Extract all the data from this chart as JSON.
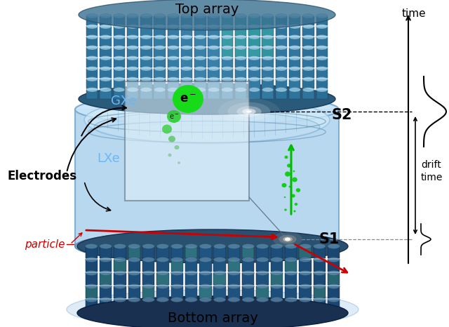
{
  "labels": {
    "top_array": "Top array",
    "bottom_array": "Bottom array",
    "GXe": "GXe",
    "LXe": "LXe",
    "Electrodes": "Electrodes",
    "S1": "S1",
    "S2": "S2",
    "particle": "particle",
    "time": "time",
    "drift_time": "drift\ntime",
    "electron": "e⁻"
  },
  "colors": {
    "background": "#ffffff",
    "body_fill": "#b8d8f0",
    "body_edge": "#7aaad0",
    "GXe_label": "#6ab8f8",
    "LXe_label": "#6ab8f8",
    "particle_color": "#cc0000",
    "electron_green": "#00cc00"
  },
  "figsize": [
    6.4,
    4.66
  ],
  "dpi": 100
}
